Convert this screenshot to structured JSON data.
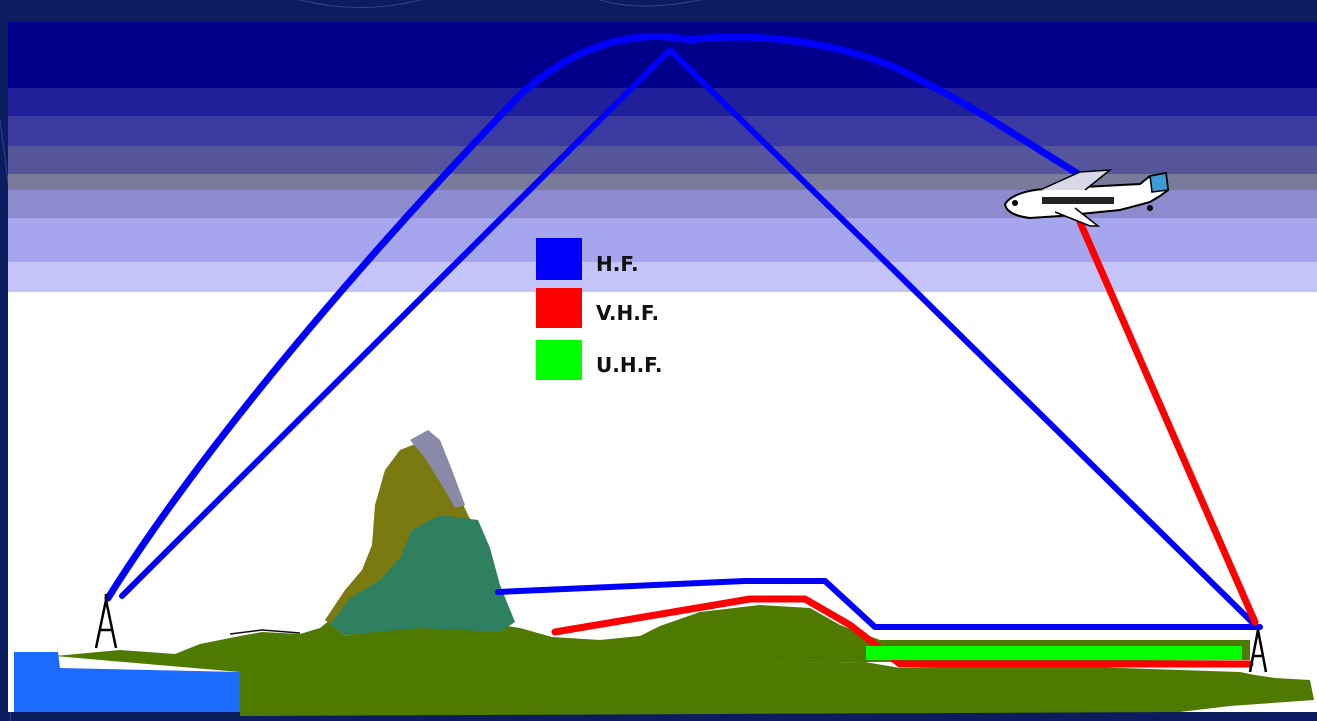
{
  "legend": {
    "items": [
      {
        "label": "H.F.",
        "color": "#0000ff"
      },
      {
        "label": "V.H.F.",
        "color": "#ff0000"
      },
      {
        "label": "U.H.F.",
        "color": "#00ff00"
      }
    ]
  },
  "colors": {
    "slide_background": "#0b1d5e",
    "sky_bands": [
      "#00008b",
      "#20209a",
      "#3a3aa0",
      "#55559c",
      "#7a7a9a",
      "#8b8bcd",
      "#a6a6ef",
      "#c4c4fb",
      "#e2e2fd"
    ],
    "land": "#4e7a00",
    "water": "#1b6bff",
    "mountain_green": "#2e8060",
    "mountain_olive": "#7a7a10",
    "mountain_peak": "#8a8aa8",
    "hf_path": "#0000ff",
    "vhf_path": "#ff0000",
    "uhf_path": "#00ff00"
  },
  "icons": [
    "left-antenna-tower-icon",
    "right-antenna-tower-icon",
    "aircraft-icon"
  ]
}
